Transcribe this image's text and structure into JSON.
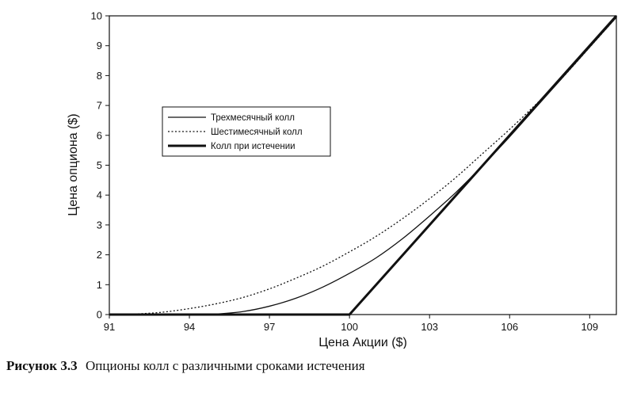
{
  "chart_data": {
    "type": "line",
    "xlabel": "Цена Акции ($)",
    "ylabel": "Цена опциона ($)",
    "xlim": [
      91,
      110
    ],
    "ylim": [
      0,
      10
    ],
    "x_ticks": [
      91,
      94,
      97,
      100,
      103,
      106,
      109
    ],
    "y_ticks": [
      0,
      1,
      2,
      3,
      4,
      5,
      6,
      7,
      8,
      9,
      10
    ],
    "grid": false,
    "legend_position": "left-middle",
    "series": [
      {
        "name": "Трехмесячный колл",
        "style": "solid-thin",
        "x": [
          91,
          92,
          93,
          94,
          95,
          96,
          97,
          98,
          99,
          100,
          101,
          102,
          103,
          104,
          105,
          106,
          107,
          108,
          109,
          110
        ],
        "y": [
          0,
          0,
          0,
          0,
          0.02,
          0.1,
          0.28,
          0.55,
          0.92,
          1.38,
          1.9,
          2.55,
          3.3,
          4.1,
          5.0,
          5.95,
          6.95,
          7.95,
          8.95,
          9.95
        ]
      },
      {
        "name": "Шестимесячный колл",
        "style": "dotted",
        "x": [
          91,
          92,
          93,
          94,
          95,
          96,
          97,
          98,
          99,
          100,
          101,
          102,
          103,
          104,
          105,
          106,
          107,
          108,
          109,
          110
        ],
        "y": [
          0,
          0.02,
          0.08,
          0.2,
          0.36,
          0.57,
          0.86,
          1.22,
          1.62,
          2.1,
          2.62,
          3.22,
          3.88,
          4.6,
          5.4,
          6.2,
          7.05,
          7.95,
          8.95,
          9.95
        ]
      },
      {
        "name": "Колл при истечении",
        "style": "solid-thick",
        "x": [
          91,
          100,
          110
        ],
        "y": [
          0,
          0,
          10
        ]
      }
    ]
  },
  "caption": {
    "figure_number": "Рисунок 3.3",
    "text": "Опционы колл с различными сроками истечения"
  }
}
